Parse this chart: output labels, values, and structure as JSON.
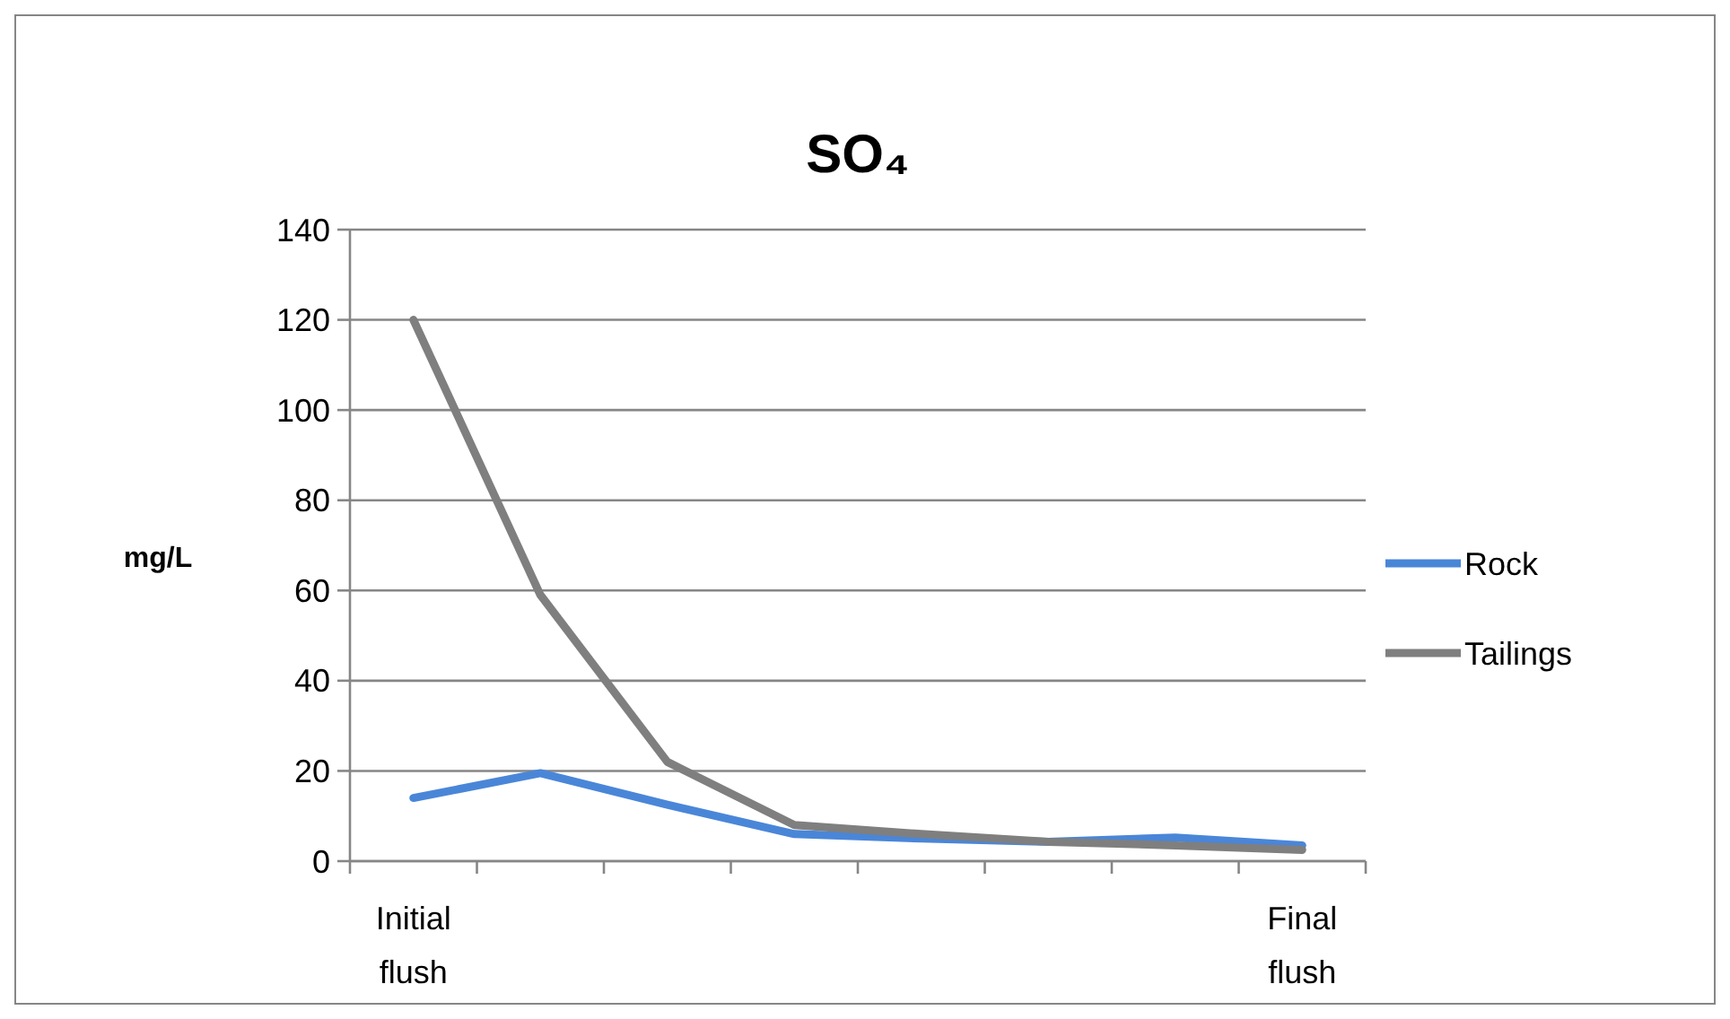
{
  "chart_data": {
    "type": "line",
    "title": "SO₄",
    "ylabel": "mg/L",
    "categories": [
      "Initial flush",
      null,
      null,
      null,
      null,
      null,
      null,
      "Final flush"
    ],
    "series": [
      {
        "name": "Rock",
        "color": "#4a86d8",
        "values": [
          14,
          19.5,
          12.5,
          6,
          5,
          4.3,
          5.2,
          3.5
        ]
      },
      {
        "name": "Tailings",
        "color": "#7f7f7f",
        "values": [
          120,
          59,
          22,
          8,
          6,
          4.3,
          3.5,
          2.5
        ]
      }
    ],
    "ylim": [
      0,
      140
    ],
    "yticks": [
      0,
      20,
      40,
      60,
      80,
      100,
      120,
      140
    ],
    "grid": "y",
    "legend": "right",
    "marker": "none",
    "line_style": "solid"
  }
}
